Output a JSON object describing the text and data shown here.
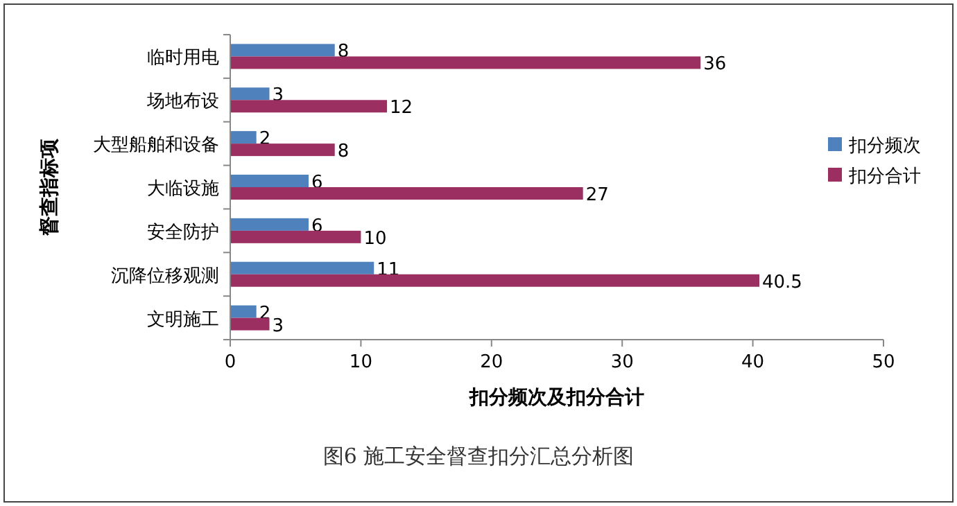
{
  "chart_data": {
    "type": "bar",
    "orientation": "horizontal",
    "categories": [
      "临时用电",
      "场地布设",
      "大型船舶和设备",
      "大临设施",
      "安全防护",
      "沉降位移观测",
      "文明施工"
    ],
    "series": [
      {
        "name": "扣分频次",
        "color": "#4f81bd",
        "values": [
          8,
          3,
          2,
          6,
          6,
          11,
          2
        ]
      },
      {
        "name": "扣分合计",
        "color": "#9b2f61",
        "values": [
          36,
          12,
          8,
          27,
          10,
          40.5,
          3
        ]
      }
    ],
    "xlim": [
      0,
      50
    ],
    "xticks": [
      0,
      10,
      20,
      30,
      40,
      50
    ],
    "xlabel": "扣分频次及扣分合计",
    "ylabel": "督查指标项",
    "legend": "right",
    "data_labels": true,
    "annotations": [
      "图6 施工安全督查扣分汇总分析图"
    ]
  }
}
